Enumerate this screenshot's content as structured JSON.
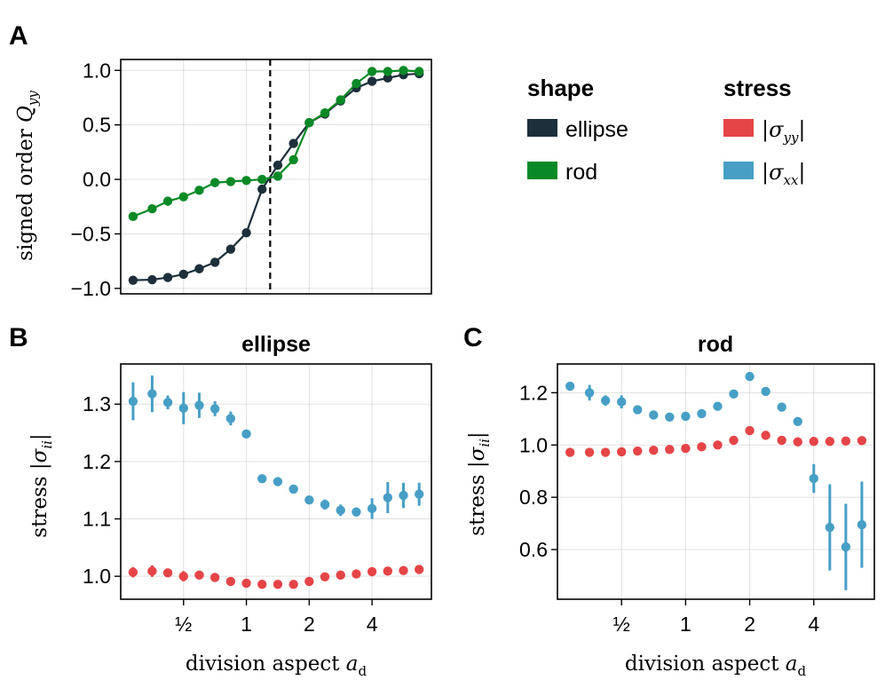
{
  "colors": {
    "ellipse": "#1c2f3a",
    "rod": "#0a8a27",
    "sigma_yy": "#e64548",
    "sigma_xx": "#479fc6"
  },
  "panels": {
    "A": {
      "letter": "A",
      "ylabel": "signed order",
      "ylabel_sym": "Q",
      "ylabel_sub": "yy"
    },
    "B": {
      "letter": "B",
      "title": "ellipse",
      "ylabel": "stress",
      "ylabel_sym": "|σ",
      "ylabel_sub": "ii",
      "ylabel_close": "|",
      "xlabel": "division aspect",
      "xlabel_sym": "a",
      "xlabel_sub": "d"
    },
    "C": {
      "letter": "C",
      "title": "rod",
      "ylabel": "stress",
      "ylabel_sym": "|σ",
      "ylabel_sub": "ii",
      "ylabel_close": "|",
      "xlabel": "division aspect",
      "xlabel_sym": "a",
      "xlabel_sub": "d"
    }
  },
  "legend": {
    "shape": {
      "title": "shape",
      "items": [
        "ellipse",
        "rod"
      ]
    },
    "stress": {
      "title": "stress",
      "items": [
        {
          "pre": "|σ",
          "sub": "yy",
          "post": "|"
        },
        {
          "pre": "|σ",
          "sub": "xx",
          "post": "|"
        }
      ]
    }
  },
  "chart_data": [
    {
      "panel": "A",
      "type": "line",
      "xscale": "log2",
      "x": [
        0.2865,
        0.3536,
        0.4204,
        0.5,
        0.5946,
        0.7071,
        0.8409,
        1,
        1.1892,
        1.4142,
        1.6818,
        2,
        2.3784,
        2.8284,
        3.3636,
        4,
        4.7568,
        5.6569,
        6.7272
      ],
      "xlim": [
        0.25,
        7.7
      ],
      "xticks": [],
      "xlabel": "",
      "ylabel": "signed order Q_yy",
      "ylim": [
        -1.05,
        1.1
      ],
      "yticks": [
        -1.0,
        -0.5,
        0.0,
        0.5,
        1.0
      ],
      "ytick_labels": [
        "−1.0",
        "−0.5",
        "0.0",
        "0.5",
        "1.0"
      ],
      "vline": {
        "x": 1.3,
        "style": "dashed"
      },
      "series": [
        {
          "name": "ellipse",
          "color_key": "ellipse",
          "values": [
            -0.925,
            -0.92,
            -0.9,
            -0.87,
            -0.82,
            -0.76,
            -0.64,
            -0.49,
            -0.09,
            0.13,
            0.33,
            0.52,
            0.6,
            0.72,
            0.84,
            0.9,
            0.93,
            0.96,
            0.97
          ]
        },
        {
          "name": "rod",
          "color_key": "rod",
          "values": [
            -0.34,
            -0.27,
            -0.2,
            -0.16,
            -0.1,
            -0.03,
            -0.02,
            -0.01,
            0.0,
            0.03,
            0.18,
            0.52,
            0.61,
            0.73,
            0.88,
            0.99,
            0.99,
            1.0,
            0.99
          ]
        }
      ]
    },
    {
      "panel": "B",
      "type": "scatter",
      "title": "ellipse",
      "xscale": "log2",
      "x": [
        0.2865,
        0.3536,
        0.4204,
        0.5,
        0.5946,
        0.7071,
        0.8409,
        1,
        1.1892,
        1.4142,
        1.6818,
        2,
        2.3784,
        2.8284,
        3.3636,
        4,
        4.7568,
        5.6569,
        6.7272
      ],
      "xlim": [
        0.25,
        7.7
      ],
      "xticks": [
        0.5,
        1,
        2,
        4
      ],
      "xtick_labels": [
        "½",
        "1",
        "2",
        "4"
      ],
      "xlabel": "division aspect a_d",
      "ylabel": "stress |σ_ii|",
      "ylim": [
        0.96,
        1.37
      ],
      "yticks": [
        1.0,
        1.1,
        1.2,
        1.3
      ],
      "ytick_labels": [
        "1.0",
        "1.1",
        "1.2",
        "1.3"
      ],
      "series": [
        {
          "name": "|σ_xx|",
          "color_key": "sigma_xx",
          "values": [
            1.305,
            1.318,
            1.303,
            1.293,
            1.298,
            1.292,
            1.275,
            1.248,
            1.17,
            1.165,
            1.152,
            1.133,
            1.125,
            1.115,
            1.112,
            1.118,
            1.137,
            1.141,
            1.143
          ],
          "errors": [
            0.033,
            0.032,
            0.012,
            0.028,
            0.022,
            0.013,
            0.012,
            0.004,
            0.003,
            0.004,
            0.004,
            0.004,
            0.009,
            0.01,
            0.004,
            0.018,
            0.027,
            0.022,
            0.02
          ]
        },
        {
          "name": "|σ_yy|",
          "color_key": "sigma_yy",
          "values": [
            1.007,
            1.009,
            1.006,
            1.0,
            1.002,
            0.998,
            0.991,
            0.988,
            0.986,
            0.986,
            0.986,
            0.991,
            0.999,
            1.002,
            1.004,
            1.008,
            1.009,
            1.01,
            1.012
          ],
          "errors": [
            0.009,
            0.01,
            0.004,
            0.009,
            0.004,
            0.003,
            0.002,
            0.002,
            0.002,
            0.002,
            0.002,
            0.003,
            0.003,
            0.002,
            0.002,
            0.005,
            0.004,
            0.007,
            0.006
          ]
        }
      ]
    },
    {
      "panel": "C",
      "type": "scatter",
      "title": "rod",
      "xscale": "log2",
      "x": [
        0.2865,
        0.3536,
        0.4204,
        0.5,
        0.5946,
        0.7071,
        0.8409,
        1,
        1.1892,
        1.4142,
        1.6818,
        2,
        2.3784,
        2.8284,
        3.3636,
        4,
        4.7568,
        5.6569,
        6.7272
      ],
      "xlim": [
        0.25,
        7.7
      ],
      "xticks": [
        0.5,
        1,
        2,
        4
      ],
      "xtick_labels": [
        "½",
        "1",
        "2",
        "4"
      ],
      "xlabel": "division aspect a_d",
      "ylabel": "stress |σ_ii|",
      "ylim": [
        0.41,
        1.31
      ],
      "yticks": [
        0.6,
        0.8,
        1.0,
        1.2
      ],
      "ytick_labels": [
        "0.6",
        "0.8",
        "1.0",
        "1.2"
      ],
      "series": [
        {
          "name": "|σ_xx|",
          "color_key": "sigma_xx",
          "values": [
            1.225,
            1.2,
            1.17,
            1.165,
            1.135,
            1.115,
            1.107,
            1.11,
            1.12,
            1.148,
            1.195,
            1.262,
            1.205,
            1.145,
            1.09,
            0.872,
            0.685,
            0.61,
            0.695
          ],
          "errors": [
            0.01,
            0.03,
            0.02,
            0.025,
            0.01,
            0.01,
            0.01,
            0.01,
            0.01,
            0.01,
            0.01,
            0.01,
            0.01,
            0.01,
            0.01,
            0.055,
            0.165,
            0.165,
            0.165
          ]
        },
        {
          "name": "|σ_yy|",
          "color_key": "sigma_yy",
          "values": [
            0.972,
            0.972,
            0.972,
            0.974,
            0.977,
            0.98,
            0.983,
            0.987,
            0.993,
            1.0,
            1.018,
            1.055,
            1.037,
            1.018,
            1.012,
            1.014,
            1.014,
            1.015,
            1.017
          ],
          "errors": [
            0.004,
            0.004,
            0.004,
            0.004,
            0.004,
            0.004,
            0.004,
            0.004,
            0.004,
            0.004,
            0.004,
            0.004,
            0.004,
            0.004,
            0.004,
            0.004,
            0.004,
            0.004,
            0.004
          ]
        }
      ]
    }
  ]
}
